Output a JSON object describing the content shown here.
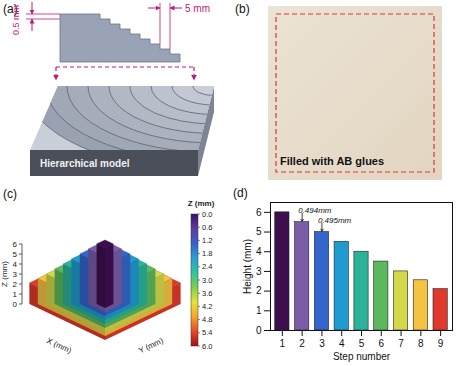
{
  "figure": {
    "a": {
      "letter": "(a)",
      "type": "diagram",
      "dimensions": [
        "0.5 mm",
        "5 mm"
      ],
      "caption": "Hierarchical model"
    },
    "b": {
      "letter": "(b)",
      "type": "photo",
      "caption": "Filled with AB glues"
    },
    "c": {
      "letter": "(c)",
      "type": "surface",
      "x_label": "X (mm)",
      "y_label": "Y (mm)",
      "z_label": "Z (mm)",
      "zlim": [
        0,
        6
      ],
      "zticks": [
        0,
        1,
        2,
        3,
        4,
        5,
        6
      ],
      "colorbar": {
        "title": "Z (mm)",
        "range": [
          0,
          6
        ],
        "ticks": [
          {
            "value": 0,
            "label": "0.0"
          },
          {
            "value": 0.6,
            "label": "0.6"
          },
          {
            "value": 1.2,
            "label": "1.2"
          },
          {
            "value": 1.8,
            "label": "1.8"
          },
          {
            "value": 2.4,
            "label": "2.4"
          },
          {
            "value": 3,
            "label": "3.0"
          },
          {
            "value": 3.6,
            "label": "3.6"
          },
          {
            "value": 4.2,
            "label": "4.2"
          },
          {
            "value": 4.8,
            "label": "4.8"
          },
          {
            "value": 5.4,
            "label": "5.4"
          },
          {
            "value": 6,
            "label": "6.0"
          }
        ],
        "colors": [
          "#3b0f70",
          "#5e3c99",
          "#3a5fcd",
          "#2aa1d3",
          "#2ec4a0",
          "#7ccf4f",
          "#e8e23a",
          "#f5a623",
          "#e5482a",
          "#a50f15"
        ]
      }
    }
  },
  "chart_data": {
    "letter": "(d)",
    "type": "bar",
    "x": [
      1,
      2,
      3,
      4,
      5,
      6,
      7,
      8,
      9
    ],
    "values": [
      6.0,
      5.5,
      5.0,
      4.5,
      4.0,
      3.5,
      3.0,
      2.55,
      2.1
    ],
    "colors": [
      "#3d0f4f",
      "#7a5ca8",
      "#3366cc",
      "#1f9bd0",
      "#2bb39a",
      "#5cb85c",
      "#d4d94c",
      "#f5c342",
      "#e0392b"
    ],
    "x_label": "Step number",
    "y_label": "Height (mm)",
    "xlim": [
      0.4,
      9.6
    ],
    "xticks": [
      1,
      2,
      3,
      4,
      5,
      6,
      7,
      8,
      9
    ],
    "ylim": [
      0,
      6.5
    ],
    "yticks": [
      0,
      1,
      2,
      3,
      4,
      5,
      6
    ],
    "annotations": [
      {
        "text": "0.494mm",
        "x": 2
      },
      {
        "text": "0.495mm",
        "x": 3
      }
    ]
  }
}
